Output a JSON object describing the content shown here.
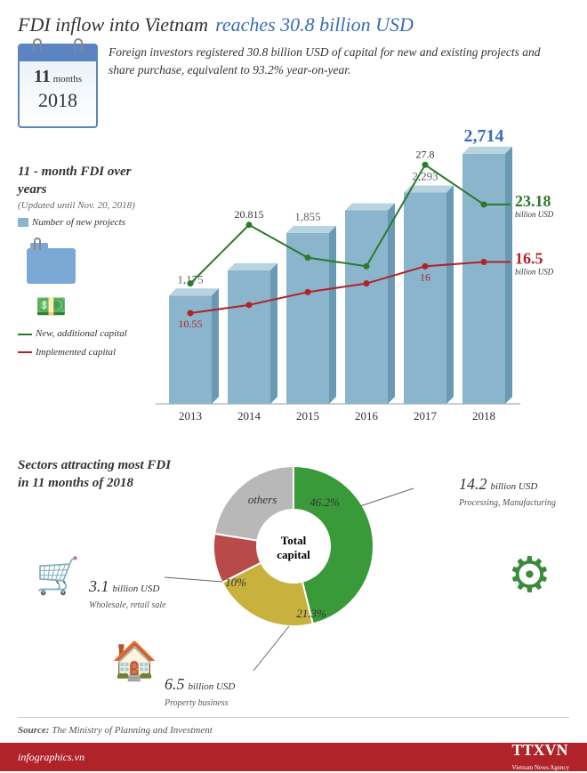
{
  "title_dark": "FDI inflow into Vietnam",
  "title_blue": "reaches 30.8 billion USD",
  "title_blue_color": "#3a6db5",
  "calendar": {
    "months_num": "11",
    "months_label": "months",
    "year": "2018"
  },
  "description": "Foreign investors registered 30.8 billion USD of capital for new and existing projects and share purchase, equivalent to 93.2% year-on-year.",
  "chart": {
    "section_title": "11 - month FDI over years",
    "section_sub": "(Updated until Nov. 20, 2018)",
    "legend_bar": "Number of new projects",
    "legend_green": "New, additional capital",
    "legend_red": "Implemented capital",
    "years": [
      "2013",
      "2014",
      "2015",
      "2016",
      "2017",
      "2018"
    ],
    "bar_values": [
      1175,
      1450,
      1855,
      2100,
      2293,
      2714
    ],
    "bar_labels": [
      "1,175",
      "",
      "1,855",
      "",
      "2,293",
      "2,714"
    ],
    "bar_label_colors": [
      "#666",
      "#666",
      "#666",
      "#666",
      "#666",
      "#3a6db5"
    ],
    "bar_label_sizes": [
      13,
      13,
      13,
      13,
      13,
      20
    ],
    "green_values": [
      14,
      20.815,
      17,
      16,
      27.8,
      23.18
    ],
    "green_labels": {
      "2014": "20.815",
      "2017": "27.8",
      "2018": "23.18"
    },
    "red_values": [
      10.55,
      11.5,
      13,
      14,
      16,
      16.5
    ],
    "red_labels": {
      "2013": "10.55",
      "2017": "16",
      "2018": "16.5"
    },
    "bar_color": "#8bb5cc",
    "bar_cap_color": "#b8d4e0",
    "green_color": "#2a7a2a",
    "red_color": "#b02328",
    "end_unit": "billion USD",
    "y_max_bar": 2800,
    "y_max_line": 30
  },
  "pie": {
    "title": "Sectors attracting most FDI in 11 months of 2018",
    "center_label": "Total capital",
    "slices": [
      {
        "label": "Processing, Manufacturing",
        "value": "14.2",
        "unit": "billion USD",
        "pct": "46.2%",
        "color": "#3a9a3a",
        "start": -90,
        "end": 76
      },
      {
        "label": "Property business",
        "value": "6.5",
        "unit": "billion USD",
        "pct": "21.3%",
        "color": "#c9b13e",
        "start": 76,
        "end": 153
      },
      {
        "label": "Wholesale, retail sale",
        "value": "3.1",
        "unit": "billion USD",
        "pct": "10%",
        "color": "#b84a4a",
        "start": 153,
        "end": 189
      },
      {
        "label": "others",
        "value": "",
        "unit": "",
        "pct": "",
        "color": "#b8b8b8",
        "start": 189,
        "end": 270
      }
    ]
  },
  "source_label": "Source:",
  "source_text": "The Ministry of Planning and Investment",
  "footer_site": "infographics.vn",
  "footer_logo": "TTXVN",
  "footer_logo_sub": "Vietnam News Agency"
}
